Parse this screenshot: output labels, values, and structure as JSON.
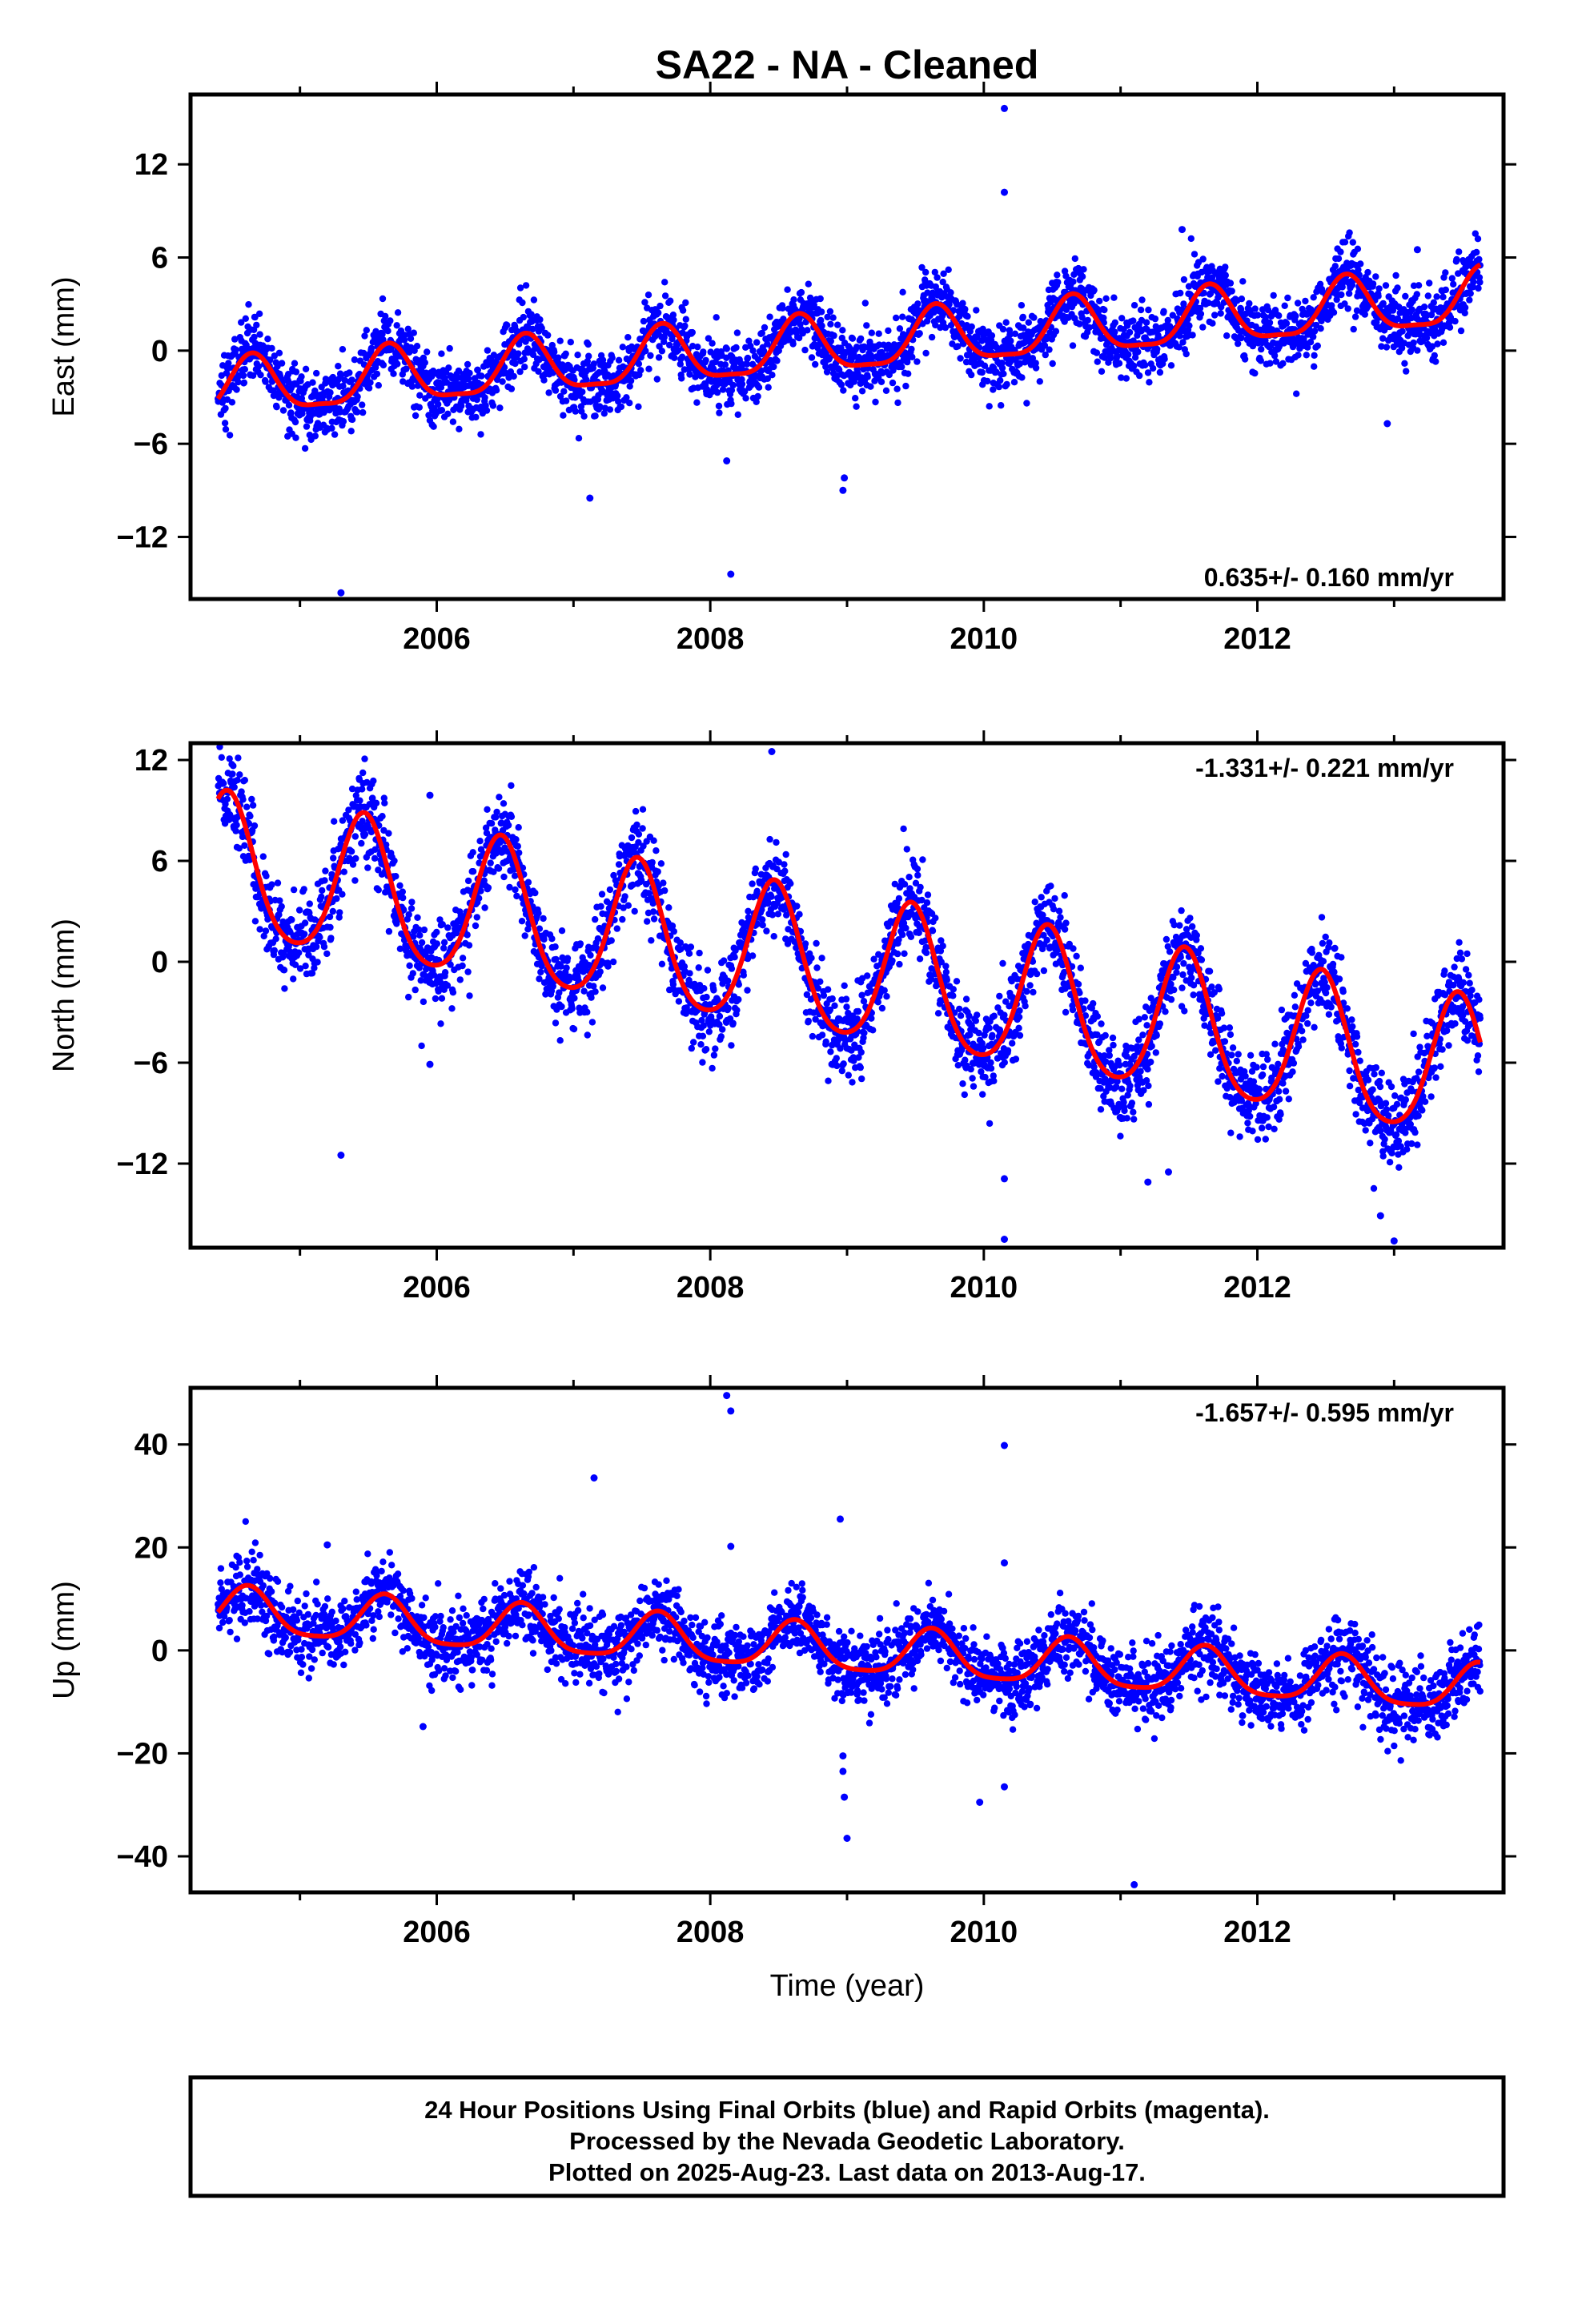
{
  "title": "SA22  - NA - Cleaned",
  "xlabel": "Time (year)",
  "footer": {
    "line1": "24 Hour Positions Using Final Orbits (blue) and Rapid Orbits (magenta).",
    "line2": "Processed by the Nevada Geodetic Laboratory.",
    "line3": "Plotted on 2025-Aug-23. Last data on 2013-Aug-17."
  },
  "colors": {
    "final_orbits": "#0000ff",
    "model": "#ff0000",
    "axes": "#000000"
  },
  "chart_data": [
    {
      "type": "scatter",
      "name": "east",
      "ylabel": "East (mm)",
      "rate": "0.635+/- 0.160 mm/yr",
      "rate_position": "bottom-right",
      "xlim": [
        2004.2,
        2013.8
      ],
      "ylim": [
        -16,
        16.5
      ],
      "yticks": [
        -12,
        -6,
        0,
        6,
        12
      ],
      "xticks": [
        2006,
        2008,
        2010,
        2012
      ],
      "data_start": 2004.4,
      "data_end": 2013.63,
      "model": {
        "offset": -2.6,
        "trend_mm_per_yr": 0.635,
        "annual_amp": 1.8,
        "annual_peak": 0.65,
        "semiannual_amp": 0.5,
        "scatter_mm": 1.1
      },
      "outliers": [
        [
          2005.3,
          -15.6
        ],
        [
          2007.12,
          -9.5
        ],
        [
          2008.12,
          -7.1
        ],
        [
          2008.15,
          -14.4
        ],
        [
          2008.97,
          -9.0
        ],
        [
          2008.98,
          -8.2
        ],
        [
          2010.15,
          15.6
        ],
        [
          2010.15,
          10.2
        ],
        [
          2011.45,
          7.8
        ],
        [
          2012.95,
          -4.7
        ],
        [
          2013.17,
          6.5
        ]
      ]
    },
    {
      "type": "scatter",
      "name": "north",
      "ylabel": "North (mm)",
      "rate": "-1.331+/- 0.221 mm/yr",
      "rate_position": "top-right",
      "xlim": [
        2004.2,
        2013.8
      ],
      "ylim": [
        -17,
        13
      ],
      "yticks": [
        -12,
        -6,
        0,
        6,
        12
      ],
      "xticks": [
        2006,
        2008,
        2010,
        2012
      ],
      "data_start": 2004.4,
      "data_end": 2013.63,
      "model": {
        "offset": 5.5,
        "trend_mm_per_yr": -1.331,
        "annual_amp": 4.2,
        "annual_peak": 0.47,
        "semiannual_amp": 0.6,
        "scatter_mm": 1.3
      },
      "outliers": [
        [
          2005.3,
          -11.5
        ],
        [
          2005.95,
          9.9
        ],
        [
          2005.95,
          -6.1
        ],
        [
          2008.45,
          12.5
        ],
        [
          2010.15,
          -12.9
        ],
        [
          2010.15,
          -16.5
        ],
        [
          2011.2,
          -13.1
        ],
        [
          2011.35,
          -12.5
        ],
        [
          2012.9,
          -15.1
        ],
        [
          2013.0,
          -16.6
        ]
      ]
    },
    {
      "type": "scatter",
      "name": "up",
      "ylabel": "Up (mm)",
      "rate": "-1.657+/- 0.595 mm/yr",
      "rate_position": "top-right",
      "xlim": [
        2004.2,
        2013.8
      ],
      "ylim": [
        -47,
        51
      ],
      "yticks": [
        -40,
        -20,
        0,
        20,
        40
      ],
      "xticks": [
        2006,
        2008,
        2010,
        2012
      ],
      "data_start": 2004.4,
      "data_end": 2013.63,
      "model": {
        "offset": 7.5,
        "trend_mm_per_yr": -1.657,
        "annual_amp": 4.5,
        "annual_peak": 0.62,
        "semiannual_amp": 1.0,
        "scatter_mm": 3.6
      },
      "outliers": [
        [
          2005.2,
          20.5
        ],
        [
          2005.9,
          -14.8
        ],
        [
          2007.15,
          33.5
        ],
        [
          2008.12,
          49.5
        ],
        [
          2008.15,
          46.5
        ],
        [
          2008.15,
          20.2
        ],
        [
          2008.95,
          25.5
        ],
        [
          2008.97,
          -20.5
        ],
        [
          2008.97,
          -23.5
        ],
        [
          2008.98,
          -28.5
        ],
        [
          2009.0,
          -36.5
        ],
        [
          2009.97,
          -29.5
        ],
        [
          2010.15,
          39.8
        ],
        [
          2010.15,
          17.0
        ],
        [
          2010.15,
          -26.5
        ],
        [
          2011.1,
          -45.5
        ]
      ]
    }
  ]
}
